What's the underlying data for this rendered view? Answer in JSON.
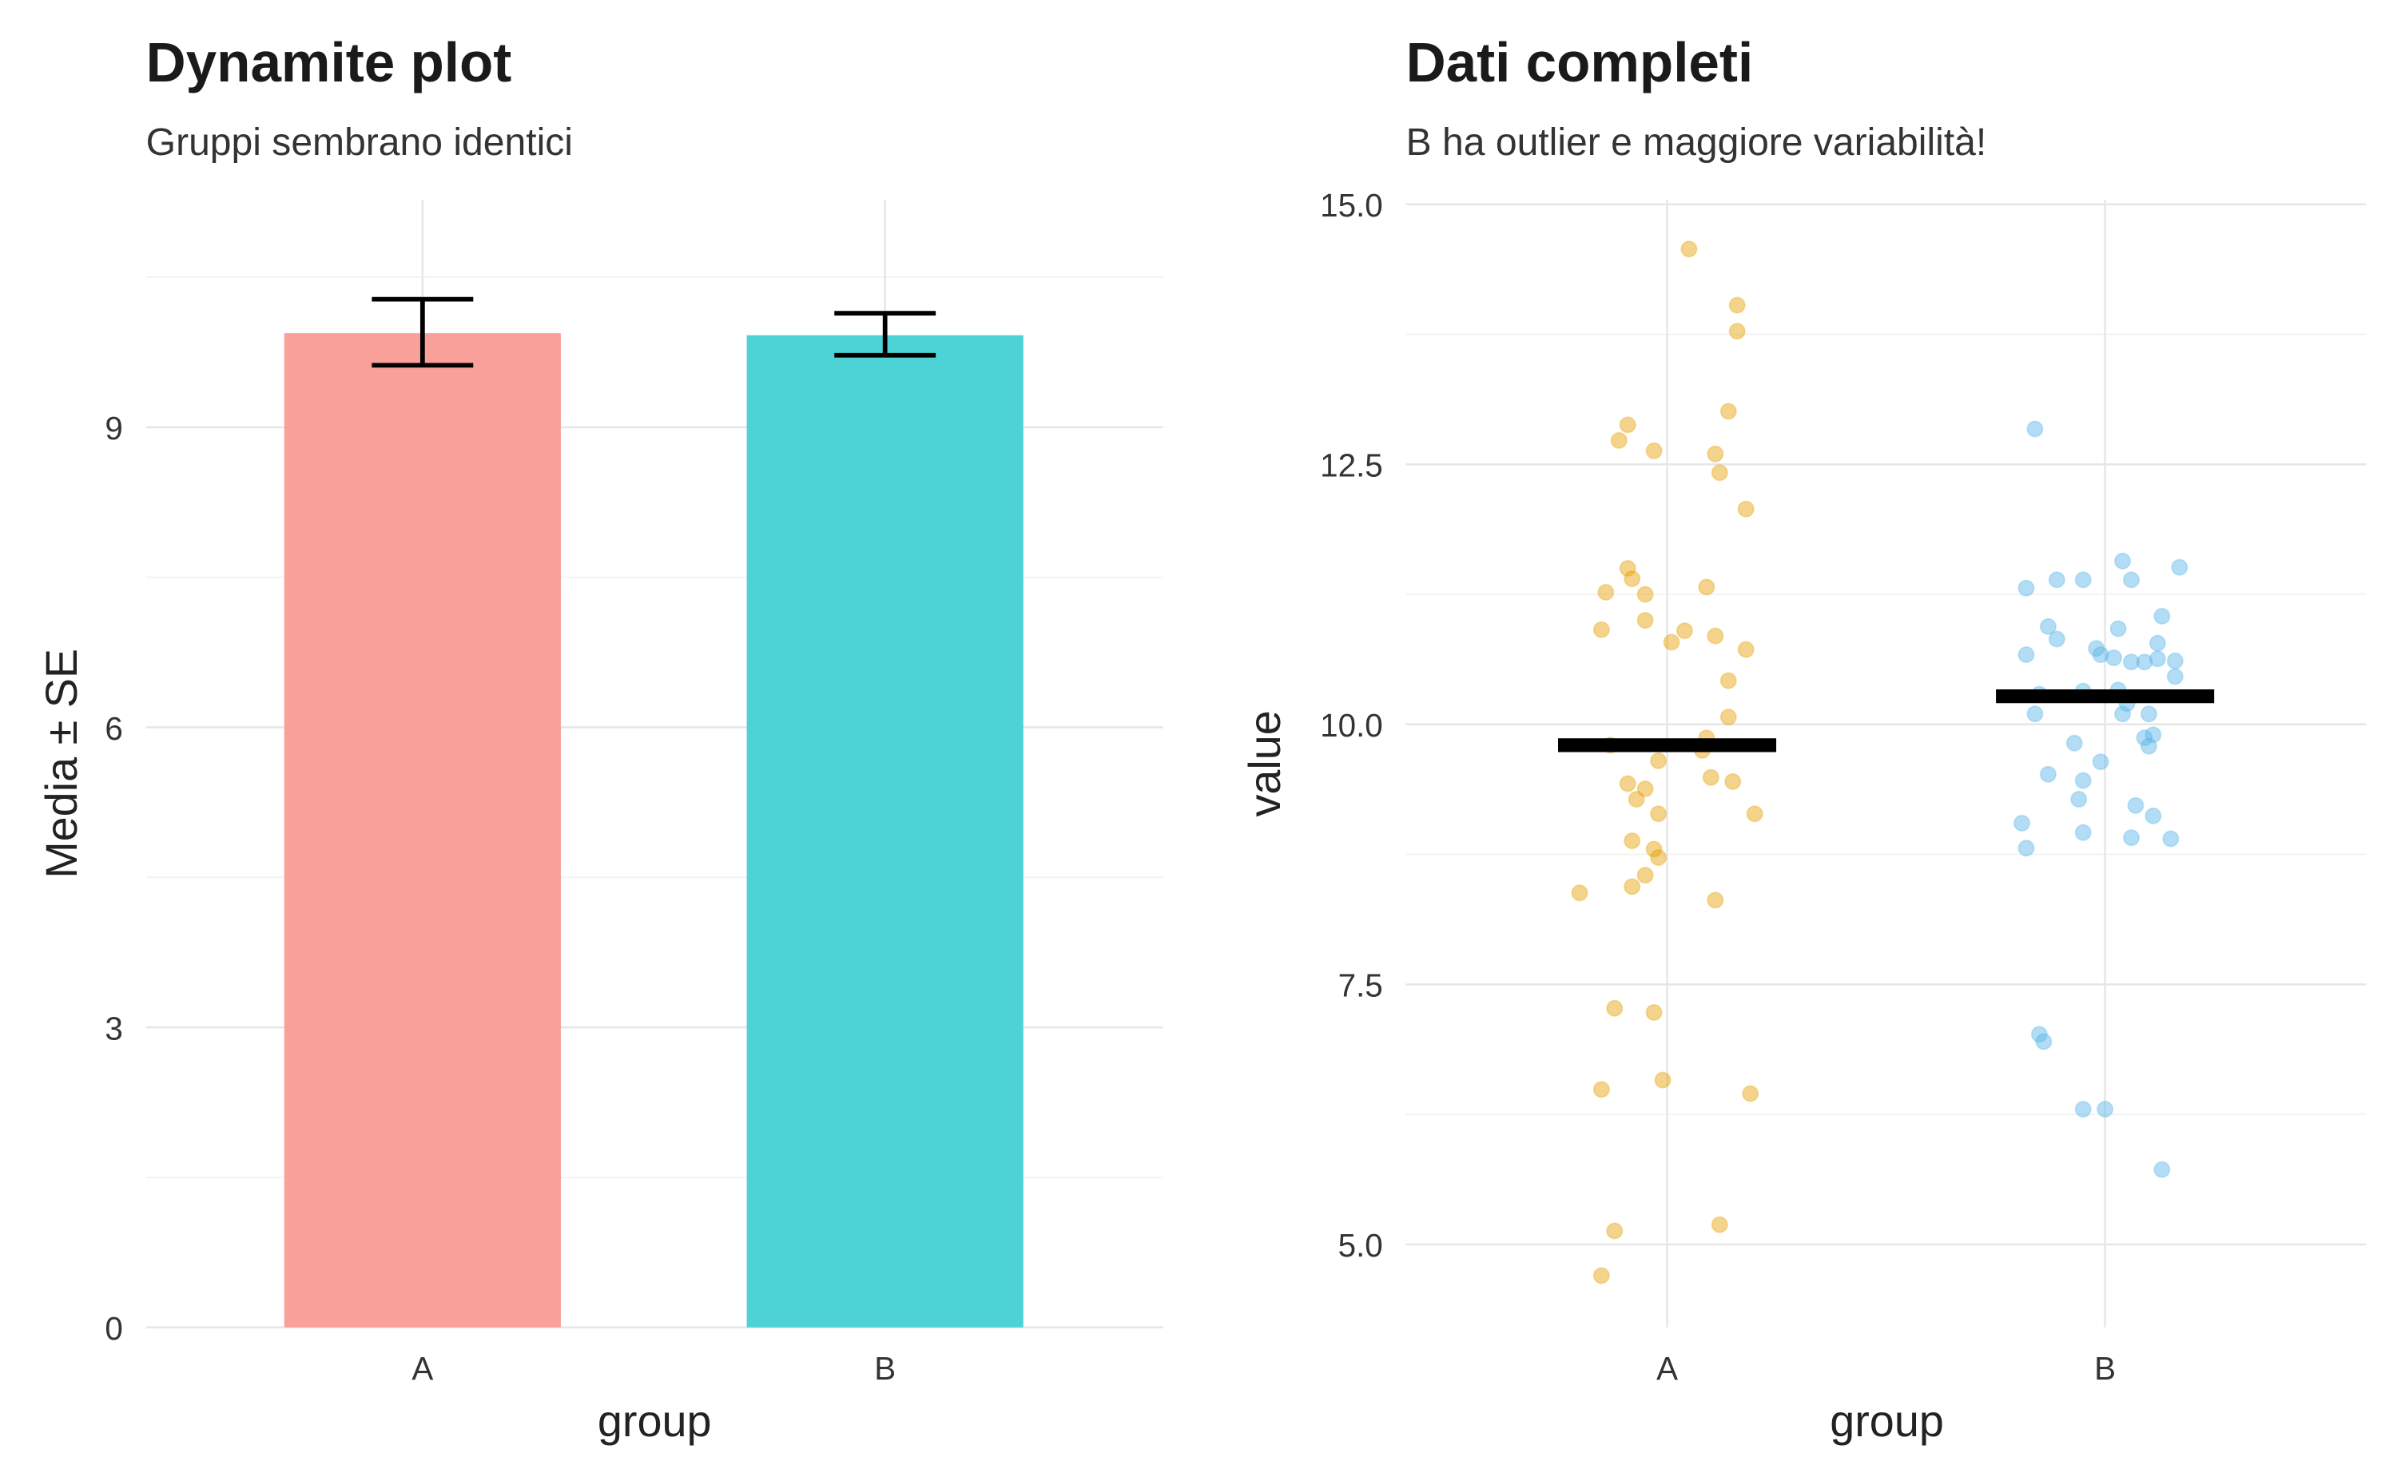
{
  "chart_data": [
    {
      "type": "bar",
      "title": "Dynamite plot",
      "subtitle": "Gruppi sembrano identici",
      "xlabel": "group",
      "ylabel": "Media ± SE",
      "categories": [
        "A",
        "B"
      ],
      "values": [
        9.94,
        9.92
      ],
      "error_low": [
        9.62,
        9.72
      ],
      "error_high": [
        10.28,
        10.14
      ],
      "colors": [
        "#F9A09A",
        "#4DD2D5"
      ],
      "ylim": [
        0,
        11.3
      ],
      "yticks": [
        0,
        3,
        6,
        9
      ],
      "ytick_labels": [
        "0",
        "3",
        "6",
        "9"
      ],
      "grid": true
    },
    {
      "type": "scatter",
      "title": "Dati completi",
      "subtitle": "B ha outlier e maggiore variabilità!",
      "xlabel": "group",
      "ylabel": "value",
      "categories": [
        "A",
        "B"
      ],
      "ylim": [
        4.2,
        15.05
      ],
      "yticks": [
        5,
        7.5,
        10,
        12.5,
        15
      ],
      "ytick_labels": [
        "5.0",
        "7.5",
        "10.0",
        "12.5",
        "15.0"
      ],
      "grid": true,
      "means": [
        9.8,
        10.27
      ],
      "colors": [
        "#E69F00",
        "#56B4E9"
      ],
      "series": [
        {
          "name": "A",
          "jitter_values": [
            [
              0.05,
              14.57
            ],
            [
              0.16,
              14.03
            ],
            [
              0.16,
              13.78
            ],
            [
              0.14,
              13.01
            ],
            [
              -0.09,
              12.88
            ],
            [
              -0.11,
              12.73
            ],
            [
              -0.03,
              12.63
            ],
            [
              0.11,
              12.6
            ],
            [
              0.12,
              12.42
            ],
            [
              0.18,
              12.07
            ],
            [
              -0.09,
              11.5
            ],
            [
              -0.08,
              11.4
            ],
            [
              -0.14,
              11.27
            ],
            [
              -0.05,
              11.25
            ],
            [
              0.09,
              11.32
            ],
            [
              -0.05,
              11.0
            ],
            [
              -0.15,
              10.91
            ],
            [
              0.04,
              10.9
            ],
            [
              0.11,
              10.85
            ],
            [
              0.01,
              10.79
            ],
            [
              0.18,
              10.72
            ],
            [
              0.14,
              10.42
            ],
            [
              0.14,
              10.07
            ],
            [
              0.09,
              9.87
            ],
            [
              -0.13,
              9.8
            ],
            [
              0.08,
              9.75
            ],
            [
              -0.02,
              9.65
            ],
            [
              0.1,
              9.49
            ],
            [
              -0.09,
              9.43
            ],
            [
              0.15,
              9.45
            ],
            [
              -0.05,
              9.38
            ],
            [
              -0.07,
              9.28
            ],
            [
              -0.02,
              9.14
            ],
            [
              0.2,
              9.14
            ],
            [
              -0.08,
              8.88
            ],
            [
              -0.03,
              8.8
            ],
            [
              -0.02,
              8.72
            ],
            [
              -0.05,
              8.55
            ],
            [
              -0.2,
              8.38
            ],
            [
              -0.08,
              8.44
            ],
            [
              0.11,
              8.31
            ],
            [
              -0.12,
              7.27
            ],
            [
              -0.03,
              7.23
            ],
            [
              -0.15,
              6.49
            ],
            [
              -0.01,
              6.58
            ],
            [
              0.19,
              6.45
            ],
            [
              -0.12,
              5.13
            ],
            [
              0.12,
              5.19
            ],
            [
              -0.15,
              4.7
            ]
          ]
        },
        {
          "name": "B",
          "jitter_values": [
            [
              -0.16,
              12.84
            ],
            [
              0.04,
              11.57
            ],
            [
              0.17,
              11.51
            ],
            [
              -0.11,
              11.39
            ],
            [
              -0.05,
              11.39
            ],
            [
              -0.18,
              11.31
            ],
            [
              0.06,
              11.39
            ],
            [
              0.13,
              11.04
            ],
            [
              -0.13,
              10.94
            ],
            [
              0.03,
              10.92
            ],
            [
              -0.11,
              10.82
            ],
            [
              0.12,
              10.78
            ],
            [
              -0.18,
              10.67
            ],
            [
              -0.02,
              10.73
            ],
            [
              -0.01,
              10.67
            ],
            [
              0.02,
              10.64
            ],
            [
              0.12,
              10.63
            ],
            [
              0.06,
              10.6
            ],
            [
              0.09,
              10.6
            ],
            [
              0.16,
              10.61
            ],
            [
              0.16,
              10.46
            ],
            [
              -0.15,
              10.29
            ],
            [
              -0.05,
              10.32
            ],
            [
              0.03,
              10.33
            ],
            [
              0.05,
              10.2
            ],
            [
              -0.16,
              10.1
            ],
            [
              0.04,
              10.1
            ],
            [
              0.1,
              10.1
            ],
            [
              0.11,
              9.9
            ],
            [
              0.09,
              9.87
            ],
            [
              -0.07,
              9.82
            ],
            [
              0.1,
              9.79
            ],
            [
              -0.01,
              9.64
            ],
            [
              -0.13,
              9.52
            ],
            [
              -0.05,
              9.46
            ],
            [
              -0.06,
              9.28
            ],
            [
              0.07,
              9.22
            ],
            [
              0.11,
              9.12
            ],
            [
              -0.19,
              9.05
            ],
            [
              -0.05,
              8.96
            ],
            [
              0.06,
              8.91
            ],
            [
              0.15,
              8.9
            ],
            [
              -0.18,
              8.81
            ],
            [
              -0.15,
              7.02
            ],
            [
              -0.14,
              6.95
            ],
            [
              -0.05,
              6.3
            ],
            [
              0.0,
              6.3
            ],
            [
              0.13,
              5.72
            ]
          ]
        }
      ]
    }
  ]
}
